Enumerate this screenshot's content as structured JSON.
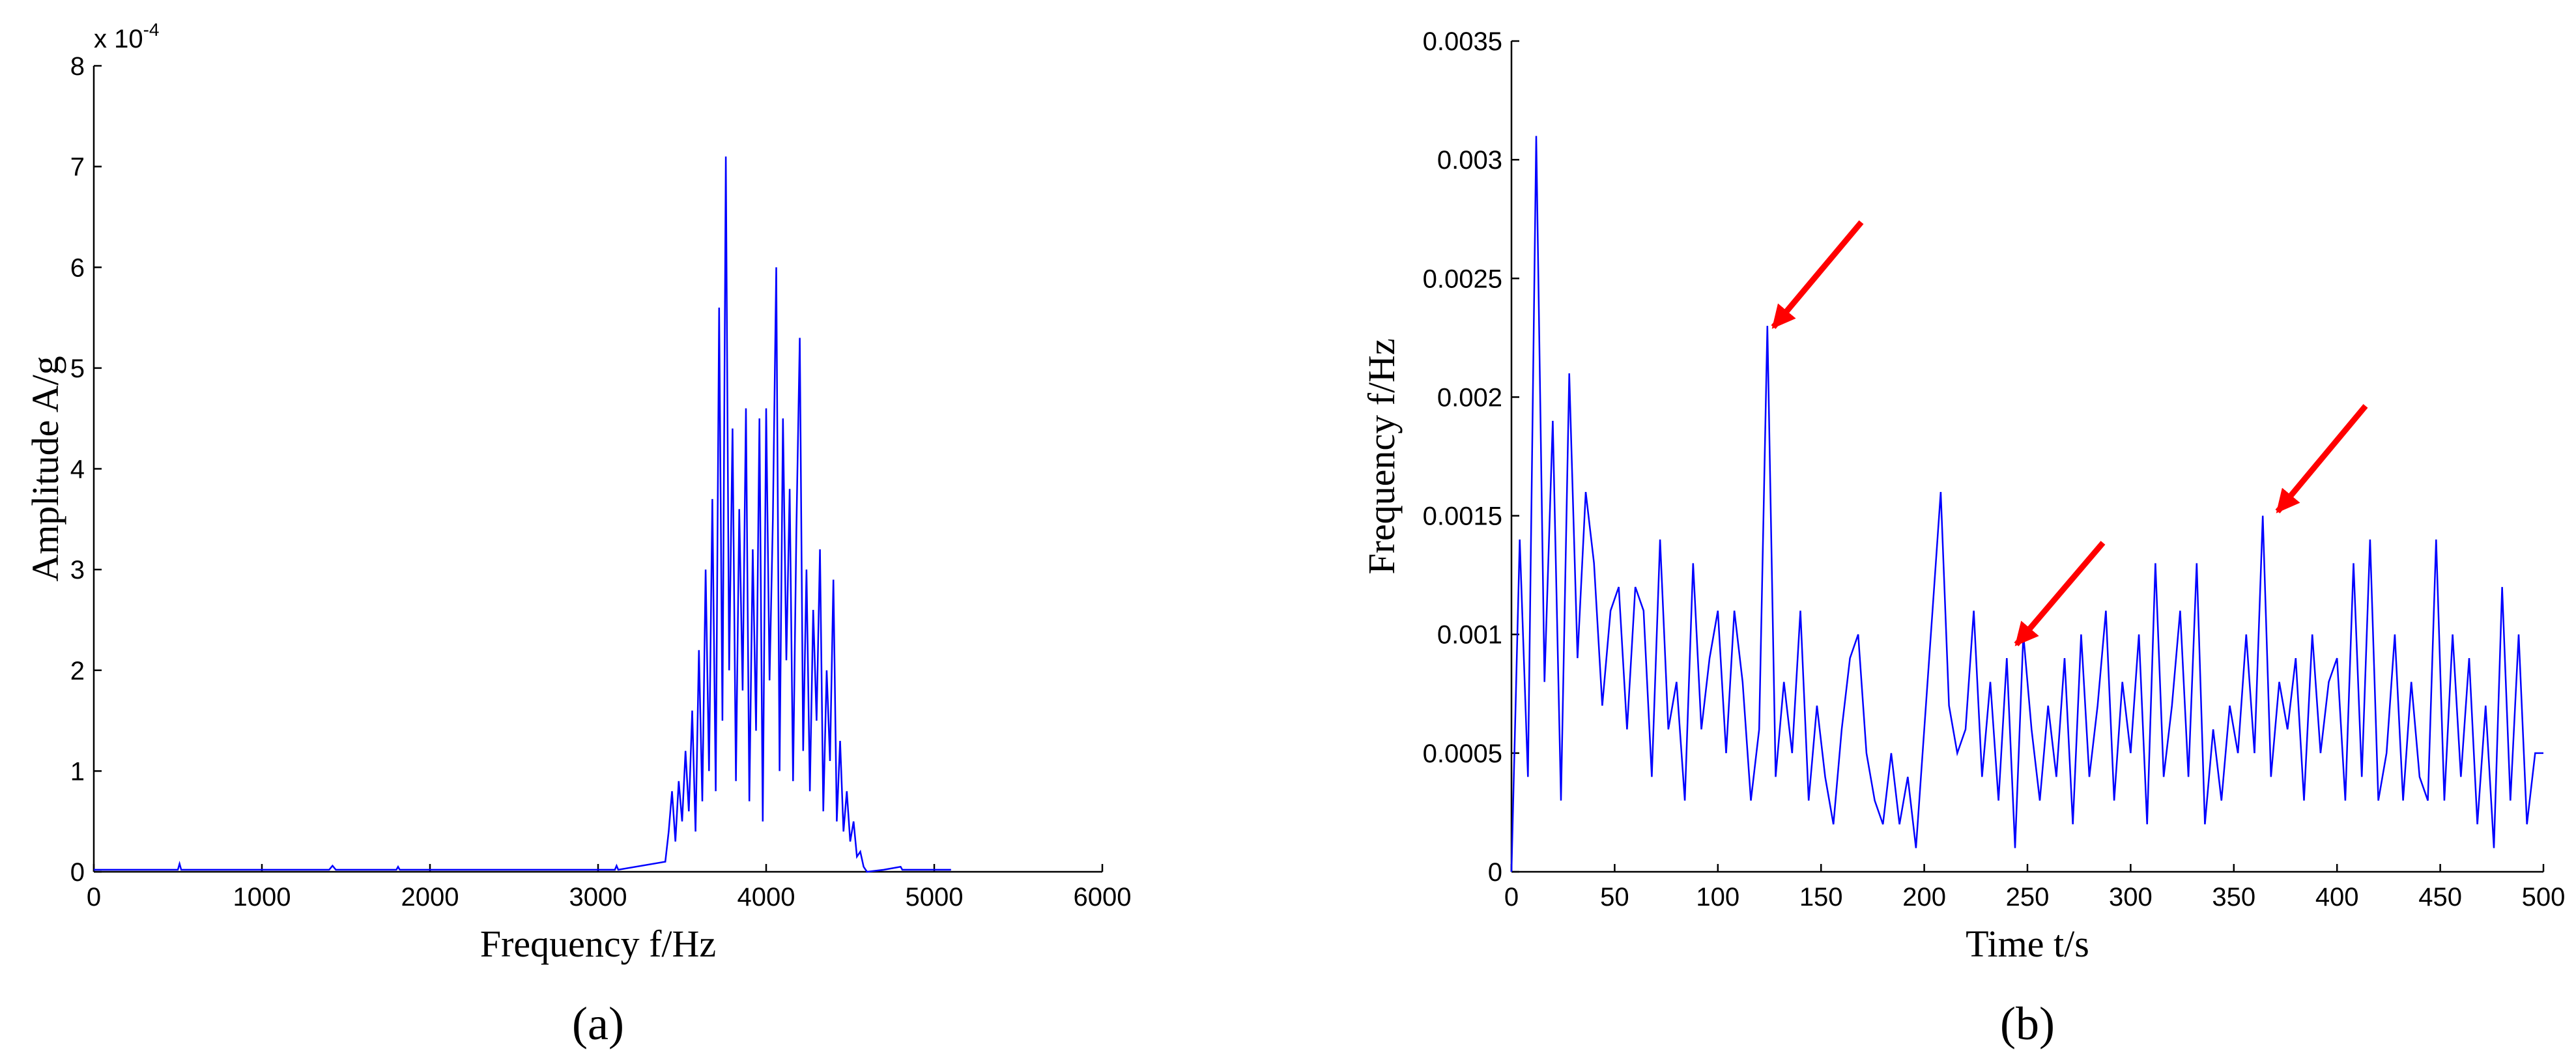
{
  "chart_data": [
    {
      "type": "line",
      "color": "#0000ff",
      "xlabel": "Frequency f/Hz",
      "ylabel": "Amplitude A/g",
      "caption": "(a)",
      "y_multiplier": "x 10",
      "y_multiplier_exponent": "-4",
      "xlim": [
        0,
        6000
      ],
      "xticks": [
        0,
        1000,
        2000,
        3000,
        4000,
        5000,
        6000
      ],
      "ylim": [
        0,
        8
      ],
      "yticks": [
        0,
        1,
        2,
        3,
        4,
        5,
        6,
        7,
        8
      ],
      "x": [
        0,
        500,
        510,
        520,
        1400,
        1420,
        1440,
        1800,
        1810,
        1820,
        3100,
        3110,
        3120,
        3400,
        3420,
        3440,
        3460,
        3480,
        3500,
        3520,
        3540,
        3560,
        3580,
        3600,
        3620,
        3640,
        3660,
        3680,
        3700,
        3720,
        3740,
        3760,
        3780,
        3800,
        3820,
        3840,
        3860,
        3880,
        3900,
        3920,
        3940,
        3960,
        3980,
        4000,
        4020,
        4040,
        4060,
        4080,
        4100,
        4120,
        4140,
        4160,
        4180,
        4200,
        4220,
        4240,
        4260,
        4280,
        4300,
        4320,
        4340,
        4360,
        4380,
        4400,
        4420,
        4440,
        4460,
        4480,
        4500,
        4520,
        4540,
        4560,
        4580,
        4600,
        4700,
        4800,
        4810,
        5100
      ],
      "values": [
        0.02,
        0.02,
        0.08,
        0.02,
        0.02,
        0.06,
        0.02,
        0.02,
        0.05,
        0.02,
        0.02,
        0.06,
        0.02,
        0.1,
        0.4,
        0.8,
        0.3,
        0.9,
        0.5,
        1.2,
        0.6,
        1.6,
        0.4,
        2.2,
        0.7,
        3.0,
        1.0,
        3.7,
        0.8,
        5.6,
        1.5,
        7.1,
        2.0,
        4.4,
        0.9,
        3.6,
        1.8,
        4.6,
        0.7,
        3.2,
        1.4,
        4.5,
        0.5,
        4.6,
        1.9,
        3.5,
        6.0,
        1.0,
        4.5,
        2.1,
        3.8,
        0.9,
        3.4,
        5.3,
        1.2,
        3.0,
        0.8,
        2.6,
        1.5,
        3.2,
        0.6,
        2.0,
        1.1,
        2.9,
        0.5,
        1.3,
        0.4,
        0.8,
        0.3,
        0.5,
        0.15,
        0.2,
        0.05,
        0,
        0.02,
        0.05,
        0.02,
        0.02
      ]
    },
    {
      "type": "line",
      "color": "#0000ff",
      "xlabel": "Time t/s",
      "ylabel": "Frequency f/Hz",
      "caption": "(b)",
      "xlim": [
        0,
        500
      ],
      "xticks": [
        0,
        50,
        100,
        150,
        200,
        250,
        300,
        350,
        400,
        450,
        500
      ],
      "ylim": [
        0,
        0.0035
      ],
      "yticks": [
        0,
        0.0005,
        0.001,
        0.0015,
        0.002,
        0.0025,
        0.003,
        0.0035
      ],
      "x": [
        0,
        4,
        8,
        12,
        16,
        20,
        24,
        28,
        32,
        36,
        40,
        44,
        48,
        52,
        56,
        60,
        64,
        68,
        72,
        76,
        80,
        84,
        88,
        92,
        96,
        100,
        104,
        108,
        112,
        116,
        120,
        124,
        128,
        132,
        136,
        140,
        144,
        148,
        152,
        156,
        160,
        164,
        168,
        172,
        176,
        180,
        184,
        188,
        192,
        196,
        200,
        204,
        208,
        212,
        216,
        220,
        224,
        228,
        232,
        236,
        240,
        244,
        248,
        252,
        256,
        260,
        264,
        268,
        272,
        276,
        280,
        284,
        288,
        292,
        296,
        300,
        304,
        308,
        312,
        316,
        320,
        324,
        328,
        332,
        336,
        340,
        344,
        348,
        352,
        356,
        360,
        364,
        368,
        372,
        376,
        380,
        384,
        388,
        392,
        396,
        400,
        404,
        408,
        412,
        416,
        420,
        424,
        428,
        432,
        436,
        440,
        444,
        448,
        452,
        456,
        460,
        464,
        468,
        472,
        476,
        480,
        484,
        488,
        492,
        496,
        500
      ],
      "values": [
        0.0,
        0.0014,
        0.0004,
        0.0031,
        0.0008,
        0.0019,
        0.0003,
        0.0021,
        0.0009,
        0.0016,
        0.0013,
        0.0007,
        0.0011,
        0.0012,
        0.0006,
        0.0012,
        0.0011,
        0.0004,
        0.0014,
        0.0006,
        0.0008,
        0.0003,
        0.0013,
        0.0006,
        0.0009,
        0.0011,
        0.0005,
        0.0011,
        0.0008,
        0.0003,
        0.0006,
        0.0023,
        0.0004,
        0.0008,
        0.0005,
        0.0011,
        0.0003,
        0.0007,
        0.0004,
        0.0002,
        0.0006,
        0.0009,
        0.001,
        0.0005,
        0.0003,
        0.0002,
        0.0005,
        0.0002,
        0.0004,
        0.0001,
        0.0006,
        0.0011,
        0.0016,
        0.0007,
        0.0005,
        0.0006,
        0.0011,
        0.0004,
        0.0008,
        0.0003,
        0.0009,
        0.0001,
        0.001,
        0.0006,
        0.0003,
        0.0007,
        0.0004,
        0.0009,
        0.0002,
        0.001,
        0.0004,
        0.0007,
        0.0011,
        0.0003,
        0.0008,
        0.0005,
        0.001,
        0.0002,
        0.0013,
        0.0004,
        0.0007,
        0.0011,
        0.0004,
        0.0013,
        0.0002,
        0.0006,
        0.0003,
        0.0007,
        0.0005,
        0.001,
        0.0005,
        0.0015,
        0.0004,
        0.0008,
        0.0006,
        0.0009,
        0.0003,
        0.001,
        0.0005,
        0.0008,
        0.0009,
        0.0003,
        0.0013,
        0.0004,
        0.0014,
        0.0003,
        0.0005,
        0.001,
        0.0003,
        0.0008,
        0.0004,
        0.0003,
        0.0014,
        0.0003,
        0.001,
        0.0004,
        0.0009,
        0.0002,
        0.0007,
        0.0001,
        0.0012,
        0.0003,
        0.001,
        0.0002,
        0.0005,
        0.0005
      ]
    }
  ]
}
